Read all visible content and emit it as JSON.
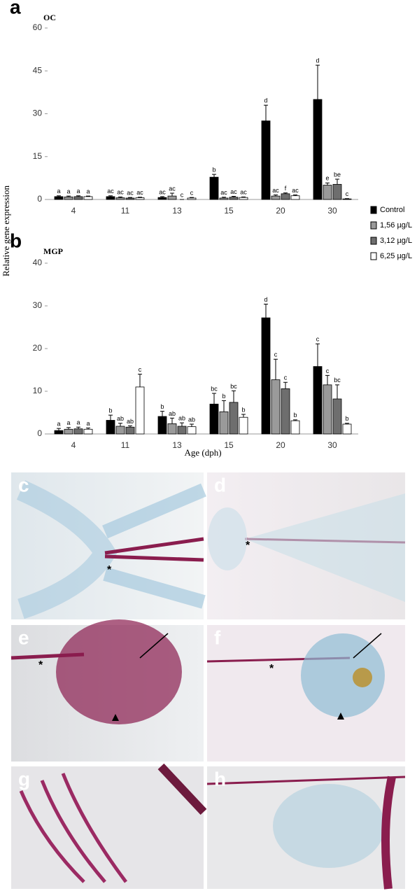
{
  "chart_data": [
    {
      "type": "bar",
      "panel": "a",
      "title": "OC",
      "ylabel": "Relative gene expression",
      "categories": [
        "4",
        "11",
        "13",
        "15",
        "20",
        "30"
      ],
      "ylim": [
        0,
        60
      ],
      "yticks": [
        0,
        15,
        30,
        45,
        60
      ],
      "series": [
        {
          "name": "Control",
          "color": "#000000",
          "values": [
            1.0,
            1.0,
            0.7,
            7.8,
            27.5,
            35
          ],
          "errors": [
            0.3,
            0.3,
            0.3,
            1.0,
            5.5,
            12
          ],
          "letters": [
            "a",
            "ac",
            "ac",
            "b",
            "d",
            "d"
          ]
        },
        {
          "name": "1,56 µg/L",
          "color": "#9a9a9a",
          "values": [
            0.9,
            0.6,
            1.2,
            0.5,
            1.2,
            5.0
          ],
          "errors": [
            0.3,
            0.3,
            1.0,
            0.3,
            0.4,
            0.8
          ],
          "letters": [
            "a",
            "ac",
            "ac",
            "ac",
            "ac",
            "e"
          ]
        },
        {
          "name": "3,12 µg/L",
          "color": "#6e6e6e",
          "values": [
            1.0,
            0.5,
            0,
            0.8,
            2.0,
            5.3
          ],
          "errors": [
            0.3,
            0.2,
            0,
            0.3,
            0.3,
            1.8
          ],
          "letters": [
            "a",
            "ac",
            "c",
            "ac",
            "f",
            "be"
          ]
        },
        {
          "name": "6,25 µg/L",
          "color": "#ffffff",
          "values": [
            1.0,
            0.6,
            0.5,
            0.7,
            1.3,
            0.2
          ],
          "errors": [
            0.2,
            0.2,
            0.2,
            0.2,
            0.3,
            0.1
          ],
          "letters": [
            "a",
            "ac",
            "c",
            "ac",
            "ac",
            "c"
          ]
        }
      ]
    },
    {
      "type": "bar",
      "panel": "b",
      "title": "MGP",
      "xlabel": "Age (dph)",
      "categories": [
        "4",
        "11",
        "13",
        "15",
        "20",
        "30"
      ],
      "ylim": [
        0,
        40
      ],
      "yticks": [
        0,
        10,
        20,
        30,
        40
      ],
      "series": [
        {
          "color": "#000000",
          "values": [
            0.8,
            3.2,
            4.1,
            7.0,
            27.2,
            15.8
          ],
          "errors": [
            0.5,
            1.2,
            1.2,
            2.5,
            3.2,
            5.3
          ],
          "letters": [
            "a",
            "b",
            "b",
            "bc",
            "d",
            "c"
          ]
        },
        {
          "color": "#9a9a9a",
          "values": [
            1.1,
            1.8,
            2.4,
            5.2,
            12.7,
            11.5
          ],
          "errors": [
            0.4,
            0.7,
            1.3,
            2.6,
            4.8,
            2.2
          ],
          "letters": [
            "a",
            "ab",
            "ab",
            "b",
            "c",
            "c"
          ]
        },
        {
          "color": "#6e6e6e",
          "values": [
            1.2,
            1.6,
            1.8,
            7.4,
            10.6,
            8.2
          ],
          "errors": [
            0.4,
            0.3,
            0.8,
            2.7,
            1.5,
            3.3
          ],
          "letters": [
            "a",
            "ab",
            "ab",
            "bc",
            "c",
            "bc"
          ]
        },
        {
          "color": "#ffffff",
          "values": [
            1.1,
            11.0,
            1.7,
            3.9,
            3.1,
            2.3
          ],
          "errors": [
            0.3,
            3.0,
            0.6,
            0.7,
            0.2,
            0.2
          ],
          "letters": [
            "a",
            "c",
            "ab",
            "b",
            "b",
            "b"
          ]
        }
      ]
    }
  ],
  "photos": {
    "panels": [
      {
        "label": "c",
        "marker": "*"
      },
      {
        "label": "d",
        "marker": "*"
      },
      {
        "label": "e",
        "marker": "*"
      },
      {
        "label": "f",
        "marker": "*"
      },
      {
        "label": "g"
      },
      {
        "label": "h"
      }
    ]
  }
}
